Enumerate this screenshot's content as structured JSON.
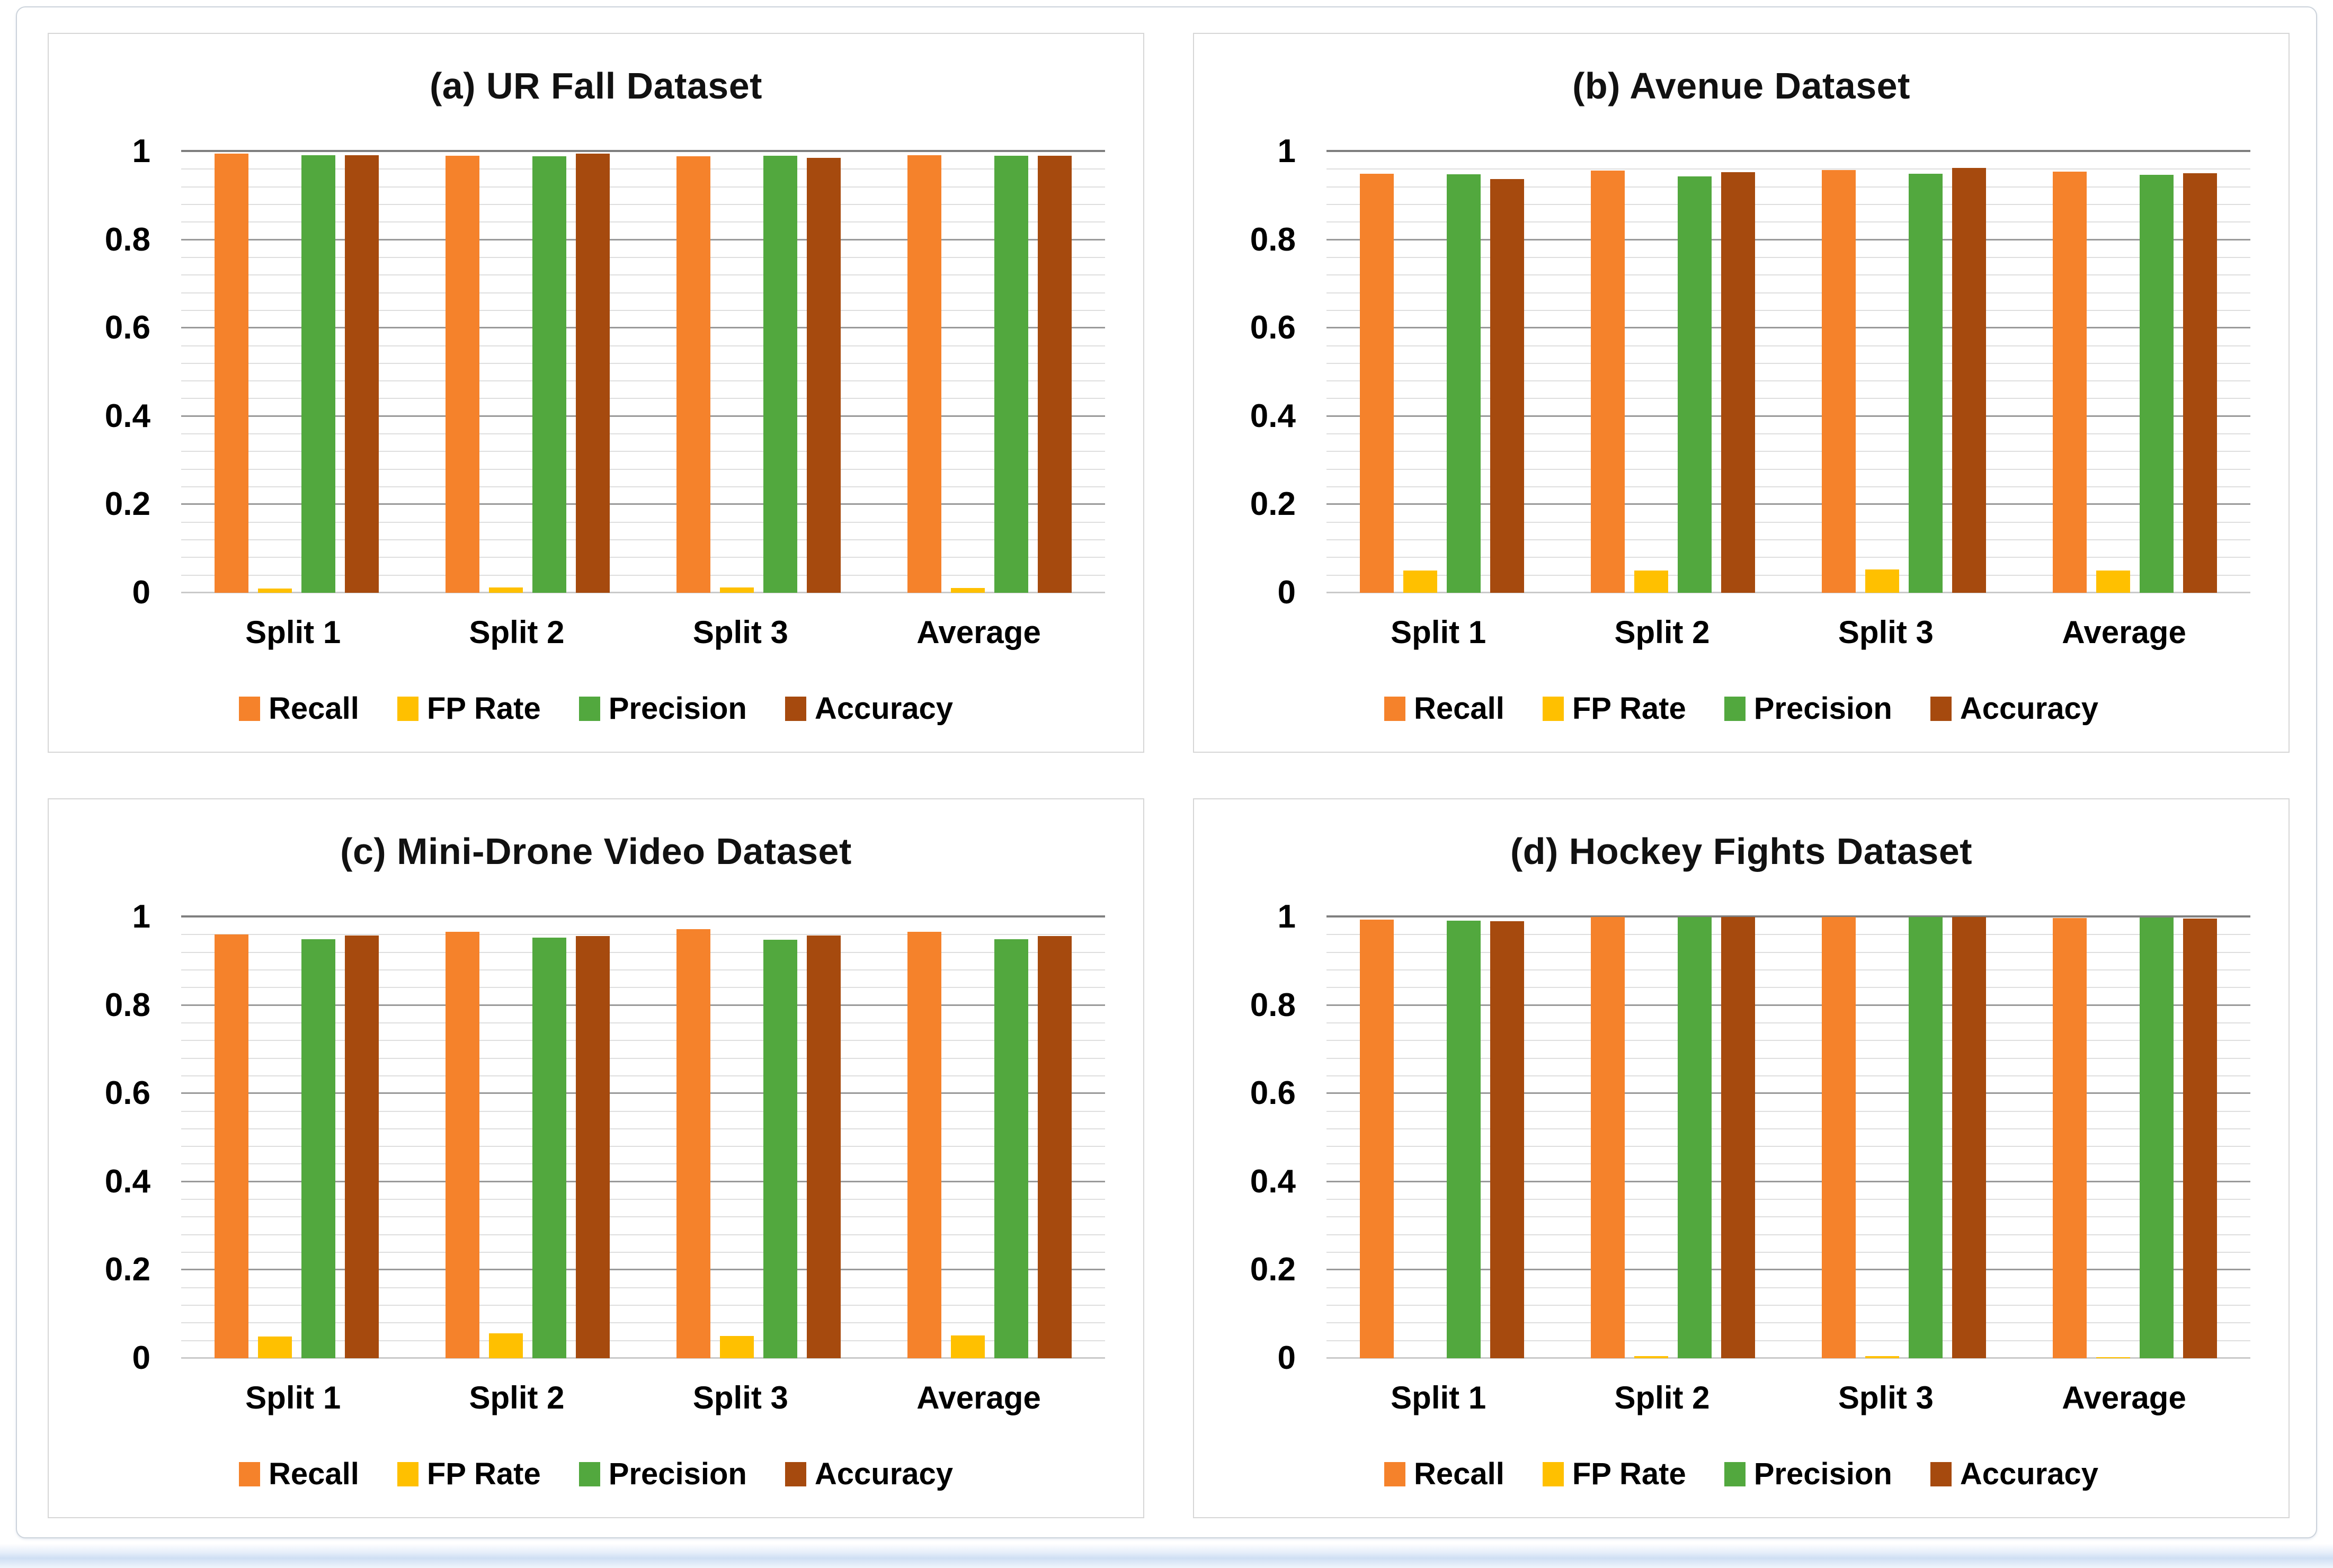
{
  "figure": {
    "description": "Performance metrics per split on four datasets",
    "x_category_header": [
      "Split 1",
      "Split 2",
      "Split 3",
      "Average"
    ],
    "legend_labels": [
      "Recall",
      "FP Rate",
      "Precision",
      "Accuracy"
    ]
  },
  "colors": {
    "recall": "#F5822B",
    "fp_rate": "#FFC000",
    "precision": "#52A83E",
    "accuracy": "#A64A0E",
    "grid_minor": "#DEDEDE",
    "grid_major": "#9A9A9A",
    "frame_border": "#CCD3DB",
    "panel_border": "#D6D6D6",
    "bottom_strip_blue": "#CFDFF4"
  },
  "chart_data": [
    {
      "type": "bar",
      "title": "(a) UR Fall Dataset",
      "categories": [
        "Split 1",
        "Split 2",
        "Split 3",
        "Average"
      ],
      "series": [
        {
          "name": "Recall",
          "color": "#F5822B",
          "values": [
            0.995,
            0.991,
            0.989,
            0.992
          ]
        },
        {
          "name": "FP Rate",
          "color": "#FFC000",
          "values": [
            0.01,
            0.012,
            0.012,
            0.011
          ]
        },
        {
          "name": "Precision",
          "color": "#52A83E",
          "values": [
            0.992,
            0.989,
            0.991,
            0.991
          ]
        },
        {
          "name": "Accuracy",
          "color": "#A64A0E",
          "values": [
            0.992,
            0.995,
            0.986,
            0.991
          ]
        }
      ],
      "xlabel": "",
      "ylabel": "",
      "ylim": [
        0,
        1
      ],
      "yticks": [
        {
          "label": "1",
          "v": 1
        },
        {
          "label": "0.8",
          "v": 0.8
        },
        {
          "label": "0.6",
          "v": 0.6
        },
        {
          "label": "0.4",
          "v": 0.4
        },
        {
          "label": "0.2",
          "v": 0.2
        },
        {
          "label": "0",
          "v": 0
        }
      ],
      "grid": {
        "minor_step": 0.04,
        "major_step": 0.2,
        "visible": true
      },
      "legend_position": "bottom"
    },
    {
      "type": "bar",
      "title": "(b) Avenue Dataset",
      "categories": [
        "Split 1",
        "Split 2",
        "Split 3",
        "Average"
      ],
      "series": [
        {
          "name": "Recall",
          "color": "#F5822B",
          "values": [
            0.95,
            0.957,
            0.958,
            0.955
          ]
        },
        {
          "name": "FP Rate",
          "color": "#FFC000",
          "values": [
            0.05,
            0.05,
            0.053,
            0.051
          ]
        },
        {
          "name": "Precision",
          "color": "#52A83E",
          "values": [
            0.948,
            0.944,
            0.949,
            0.947
          ]
        },
        {
          "name": "Accuracy",
          "color": "#A64A0E",
          "values": [
            0.938,
            0.953,
            0.963,
            0.951
          ]
        }
      ],
      "xlabel": "",
      "ylabel": "",
      "ylim": [
        0,
        1
      ],
      "yticks": [
        {
          "label": "1",
          "v": 1
        },
        {
          "label": "0.8",
          "v": 0.8
        },
        {
          "label": "0.6",
          "v": 0.6
        },
        {
          "label": "0.4",
          "v": 0.4
        },
        {
          "label": "0.2",
          "v": 0.2
        },
        {
          "label": "0",
          "v": 0
        }
      ],
      "grid": {
        "minor_step": 0.04,
        "major_step": 0.2,
        "visible": true
      },
      "legend_position": "bottom"
    },
    {
      "type": "bar",
      "title": "(c) Mini-Drone Video Dataset",
      "categories": [
        "Split 1",
        "Split 2",
        "Split 3",
        "Average"
      ],
      "series": [
        {
          "name": "Recall",
          "color": "#F5822B",
          "values": [
            0.96,
            0.967,
            0.972,
            0.966
          ]
        },
        {
          "name": "FP Rate",
          "color": "#FFC000",
          "values": [
            0.049,
            0.056,
            0.051,
            0.052
          ]
        },
        {
          "name": "Precision",
          "color": "#52A83E",
          "values": [
            0.95,
            0.953,
            0.948,
            0.95
          ]
        },
        {
          "name": "Accuracy",
          "color": "#A64A0E",
          "values": [
            0.958,
            0.957,
            0.958,
            0.957
          ]
        }
      ],
      "xlabel": "",
      "ylabel": "",
      "ylim": [
        0,
        1
      ],
      "yticks": [
        {
          "label": "1",
          "v": 1
        },
        {
          "label": "0.8",
          "v": 0.8
        },
        {
          "label": "0.6",
          "v": 0.6
        },
        {
          "label": "0.4",
          "v": 0.4
        },
        {
          "label": "0.2",
          "v": 0.2
        },
        {
          "label": "0",
          "v": 0
        }
      ],
      "grid": {
        "minor_step": 0.04,
        "major_step": 0.2,
        "visible": true
      },
      "legend_position": "bottom"
    },
    {
      "type": "bar",
      "title": "(d) Hockey Fights Dataset",
      "categories": [
        "Split 1",
        "Split 2",
        "Split 3",
        "Average"
      ],
      "series": [
        {
          "name": "Recall",
          "color": "#F5822B",
          "values": [
            0.994,
            1.0,
            1.0,
            0.998
          ]
        },
        {
          "name": "FP Rate",
          "color": "#FFC000",
          "values": [
            0.0,
            0.005,
            0.005,
            0.003
          ]
        },
        {
          "name": "Precision",
          "color": "#52A83E",
          "values": [
            0.992,
            1.0,
            1.0,
            0.999
          ]
        },
        {
          "name": "Accuracy",
          "color": "#A64A0E",
          "values": [
            0.991,
            1.0,
            1.0,
            0.997
          ]
        }
      ],
      "xlabel": "",
      "ylabel": "",
      "ylim": [
        0,
        1
      ],
      "yticks": [
        {
          "label": "1",
          "v": 1
        },
        {
          "label": "0.8",
          "v": 0.8
        },
        {
          "label": "0.6",
          "v": 0.6
        },
        {
          "label": "0.4",
          "v": 0.4
        },
        {
          "label": "0.2",
          "v": 0.2
        },
        {
          "label": "0",
          "v": 0
        }
      ],
      "grid": {
        "minor_step": 0.04,
        "major_step": 0.2,
        "visible": true
      },
      "legend_position": "bottom"
    }
  ]
}
